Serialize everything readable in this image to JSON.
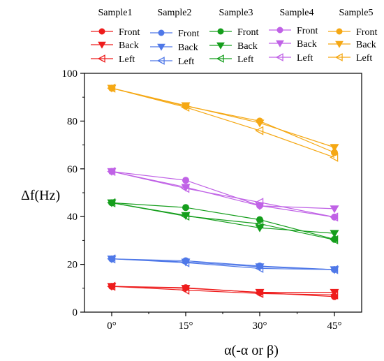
{
  "chart_data": {
    "type": "line",
    "xlabel": "α(-α or β)",
    "ylabel": "Δf(Hz)",
    "categories": [
      "0°",
      "15°",
      "30°",
      "45°"
    ],
    "ylim": [
      0,
      100
    ],
    "yticks": [
      0,
      20,
      40,
      60,
      80,
      100
    ],
    "grid": false,
    "legend_position": "top",
    "legend_groups": [
      "Sample1",
      "Sample2",
      "Sample3",
      "Sample4",
      "Sample5"
    ],
    "legend_items": [
      "Front",
      "Back",
      "Left"
    ],
    "marker_shapes": {
      "Front": "filled-circle",
      "Back": "filled-triangle-down",
      "Left": "open-triangle-left"
    },
    "series": [
      {
        "group": "Sample1",
        "name": "Front",
        "color": "#ee1c1c",
        "values": [
          10.8,
          10.2,
          8.2,
          6.5
        ]
      },
      {
        "group": "Sample1",
        "name": "Back",
        "color": "#ee1c1c",
        "values": [
          10.8,
          10.0,
          8.3,
          8.3
        ]
      },
      {
        "group": "Sample1",
        "name": "Left",
        "color": "#ee1c1c",
        "values": [
          10.8,
          9.2,
          7.8,
          7.2
        ]
      },
      {
        "group": "Sample2",
        "name": "Front",
        "color": "#4f78e8",
        "values": [
          22.3,
          21.5,
          19.3,
          17.8
        ]
      },
      {
        "group": "Sample2",
        "name": "Back",
        "color": "#4f78e8",
        "values": [
          22.3,
          21.0,
          19.0,
          17.8
        ]
      },
      {
        "group": "Sample2",
        "name": "Left",
        "color": "#4f78e8",
        "values": [
          22.3,
          20.7,
          18.3,
          17.8
        ]
      },
      {
        "group": "Sample3",
        "name": "Front",
        "color": "#159e1c",
        "values": [
          45.8,
          43.8,
          38.7,
          30.5
        ]
      },
      {
        "group": "Sample3",
        "name": "Back",
        "color": "#159e1c",
        "values": [
          45.8,
          40.5,
          35.3,
          33.0
        ]
      },
      {
        "group": "Sample3",
        "name": "Left",
        "color": "#159e1c",
        "values": [
          45.8,
          40.2,
          37.0,
          30.3
        ]
      },
      {
        "group": "Sample4",
        "name": "Front",
        "color": "#c062e6",
        "values": [
          58.9,
          55.2,
          44.6,
          39.8
        ]
      },
      {
        "group": "Sample4",
        "name": "Back",
        "color": "#c062e6",
        "values": [
          58.9,
          52.3,
          44.5,
          43.3
        ]
      },
      {
        "group": "Sample4",
        "name": "Left",
        "color": "#c062e6",
        "values": [
          58.9,
          51.8,
          46.0,
          39.8
        ]
      },
      {
        "group": "Sample5",
        "name": "Front",
        "color": "#f5a814",
        "values": [
          93.8,
          86.3,
          80.0,
          66.8
        ]
      },
      {
        "group": "Sample5",
        "name": "Back",
        "color": "#f5a814",
        "values": [
          93.8,
          86.5,
          79.2,
          69.0
        ]
      },
      {
        "group": "Sample5",
        "name": "Left",
        "color": "#f5a814",
        "values": [
          93.8,
          85.8,
          76.0,
          64.8
        ]
      }
    ]
  }
}
